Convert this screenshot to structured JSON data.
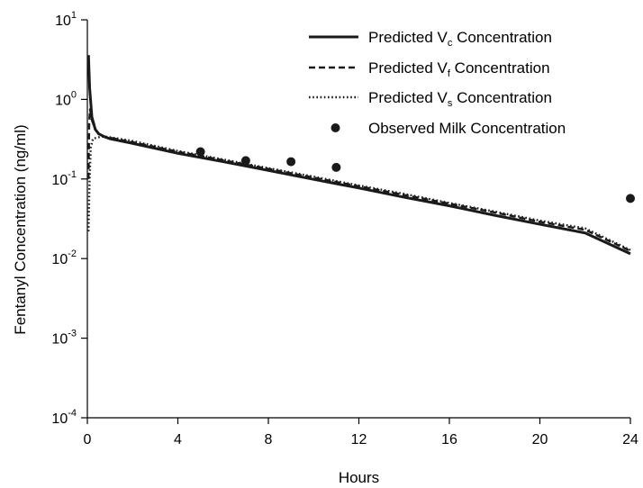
{
  "chart_data": {
    "type": "line",
    "xlabel": "Hours",
    "ylabel": "Fentanyl Concentration (ng/ml)",
    "xlim": [
      0,
      24
    ],
    "ylim": [
      0.0001,
      10
    ],
    "yscale": "log",
    "xticks": [
      0,
      4,
      8,
      12,
      16,
      20,
      24
    ],
    "yticks": [
      {
        "base": "10",
        "exp": "1",
        "value": 10
      },
      {
        "base": "10",
        "exp": "0",
        "value": 1
      },
      {
        "base": "10",
        "exp": "-1",
        "value": 0.1
      },
      {
        "base": "10",
        "exp": "-2",
        "value": 0.01
      },
      {
        "base": "10",
        "exp": "-3",
        "value": 0.001
      },
      {
        "base": "10",
        "exp": "-4",
        "value": 0.0001
      }
    ],
    "grid": false,
    "legend_position": "top-right",
    "series": [
      {
        "id": "vc",
        "legend_main": "Predicted V",
        "legend_sub": "c",
        "legend_tail": " Concentration",
        "style": "solid",
        "color": "#1a1a1a",
        "x": [
          0.05,
          0.1,
          0.2,
          0.35,
          0.5,
          0.75,
          1,
          2,
          4,
          6,
          8,
          10,
          12,
          14,
          16,
          18,
          20,
          22,
          24
        ],
        "y": [
          3.6,
          1.4,
          0.6,
          0.42,
          0.37,
          0.34,
          0.32,
          0.28,
          0.21,
          0.165,
          0.128,
          0.099,
          0.077,
          0.059,
          0.046,
          0.035,
          0.027,
          0.021,
          0.0115
        ]
      },
      {
        "id": "vf",
        "legend_main": "Predicted V",
        "legend_sub": "f",
        "legend_tail": " Concentration",
        "style": "dashed",
        "color": "#1a1a1a",
        "x": [
          0.05,
          0.08,
          0.12,
          0.2,
          0.35,
          0.5,
          0.75,
          1,
          2,
          4,
          6,
          8,
          10,
          12,
          14,
          16,
          18,
          20,
          22,
          24
        ],
        "y": [
          0.1,
          0.5,
          0.75,
          0.55,
          0.42,
          0.37,
          0.34,
          0.33,
          0.29,
          0.22,
          0.172,
          0.134,
          0.104,
          0.081,
          0.063,
          0.049,
          0.038,
          0.029,
          0.023,
          0.0125
        ]
      },
      {
        "id": "vs",
        "legend_main": "Predicted V",
        "legend_sub": "s",
        "legend_tail": " Concentration",
        "style": "dotted",
        "color": "#1a1a1a",
        "x": [
          0.05,
          0.1,
          0.15,
          0.25,
          0.4,
          0.6,
          0.8,
          1,
          2,
          4,
          6,
          8,
          10,
          12,
          14,
          16,
          18,
          20,
          22,
          24
        ],
        "y": [
          0.022,
          0.1,
          0.25,
          0.32,
          0.33,
          0.34,
          0.34,
          0.335,
          0.3,
          0.225,
          0.176,
          0.137,
          0.107,
          0.083,
          0.065,
          0.05,
          0.039,
          0.03,
          0.024,
          0.0128
        ]
      }
    ],
    "observed": {
      "name": "Observed Milk Concentration",
      "color": "#1a1a1a",
      "points": [
        {
          "x": 5,
          "y": 0.22
        },
        {
          "x": 7,
          "y": 0.17
        },
        {
          "x": 9,
          "y": 0.165
        },
        {
          "x": 11,
          "y": 0.14
        },
        {
          "x": 24,
          "y": 0.057
        }
      ]
    }
  }
}
